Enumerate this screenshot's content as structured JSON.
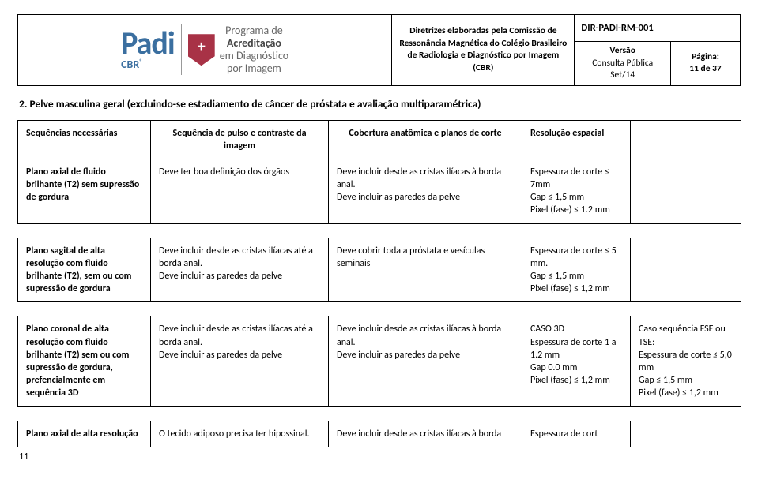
{
  "header": {
    "logo": {
      "padi_text": "Padi",
      "cbr_text": "CBR",
      "program_line1": "Programa de",
      "program_line2": "Acreditação",
      "program_line3": "em Diagnóstico",
      "program_line4": "por Imagem"
    },
    "directive_block": "Diretrizes elaboradas pela Comissão de Ressonância Magnética do Colégio Brasileiro de Radiologia e Diagnóstico por Imagem (CBR)",
    "doc_id": "DIR-PADI-RM-001",
    "version_label": "Versão",
    "version_value": "Consulta Pública",
    "version_date": "Set/14",
    "page_label": "Página:",
    "page_value": "11 de 37"
  },
  "section_heading": "2. Pelve masculina geral (excluindo-se estadiamento de câncer de próstata e avaliação multiparamétrica)",
  "columns": {
    "c1": "Sequências necessárias",
    "c2": "Sequência de pulso e contraste da imagem",
    "c3": "Cobertura anatômica e planos de corte",
    "c4": "Resolução espacial",
    "c5": ""
  },
  "rows": [
    {
      "c1": "Plano axial de fluido brilhante (T2) sem supressão de gordura",
      "c2": "Deve ter boa definição dos órgãos",
      "c3": "Deve incluir desde as cristas ilíacas à borda anal.\nDeve incluir as paredes da pelve",
      "c4": "Espessura de corte ≤ 7mm\nGap ≤ 1,5 mm\nPixel (fase) ≤ 1.2 mm",
      "c5": ""
    },
    {
      "c1": "Plano sagital de alta resolução com fluido brilhante (T2), sem ou com supressão de gordura",
      "c2": "Deve incluir desde as cristas ilíacas até a borda anal.\nDeve incluir as paredes da pelve",
      "c3": "Deve cobrir toda a próstata e vesículas seminais",
      "c4": "Espessura de corte ≤ 5 mm.\nGap ≤ 1,5 mm\nPixel (fase) ≤ 1,2 mm",
      "c5": ""
    },
    {
      "c1": "Plano coronal de alta resolução com fluido brilhante (T2) sem ou com supressão de gordura, prefencialmente em sequência 3D",
      "c2": "Deve incluir desde as cristas ilíacas até a borda anal.\nDeve incluir as paredes da pelve",
      "c3": "Deve incluir desde as cristas ilíacas à borda anal.\nDeve incluir as paredes da pelve",
      "c4": "CASO 3D\nEspessura de corte 1 a 1.2 mm\nGap 0.0 mm\nPixel (fase) ≤ 1,2 mm",
      "c5": "Caso sequência FSE ou TSE:\nEspessura de corte ≤ 5,0 mm\nGap ≤ 1,5 mm\nPixel (fase) ≤ 1,2 mm"
    },
    {
      "c1": "Plano axial de alta resolução",
      "c2": "O tecido adiposo precisa ter hipossinal.",
      "c3": "Deve incluir desde as cristas ilíacas à borda",
      "c4": "Espessura de cort",
      "c5": ""
    }
  ],
  "footer_page_num": "11"
}
